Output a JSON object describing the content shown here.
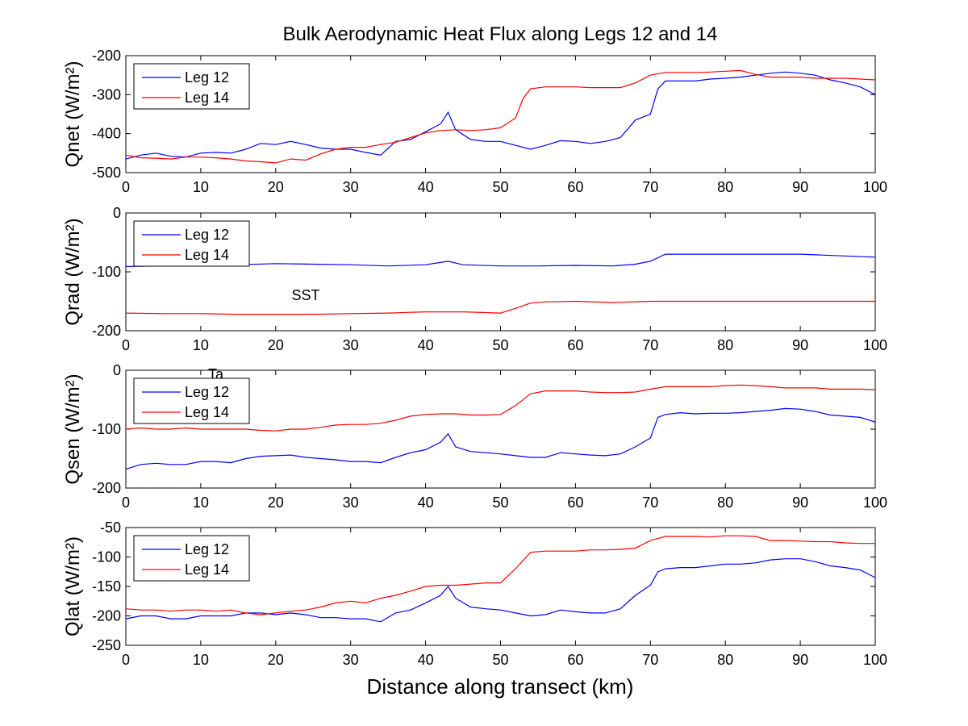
{
  "chart_data": {
    "title": "Bulk Aerodynamic Heat Flux along Legs 12 and 14",
    "xlabel": "Distance along transect (km)",
    "colors": {
      "Leg 12": "#0000ff",
      "Leg 14": "#ff0000"
    },
    "panels": [
      {
        "type": "line",
        "ylabel": "Qnet (W/m²)",
        "ylim": [
          -500,
          -200
        ],
        "yticks": [
          "-200",
          "-300",
          "-400",
          "-500"
        ],
        "xlim": [
          0,
          100
        ],
        "xticks": [
          "0",
          "10",
          "20",
          "30",
          "40",
          "50",
          "60",
          "70",
          "80",
          "90",
          "100"
        ],
        "legend": [
          "Leg 12",
          "Leg 14"
        ],
        "annotations": [],
        "series": [
          {
            "name": "Leg 12",
            "x": [
              0,
              2,
              4,
              6,
              8,
              10,
              12,
              14,
              16,
              18,
              20,
              22,
              24,
              26,
              28,
              30,
              32,
              34,
              36,
              38,
              40,
              42,
              43,
              44,
              46,
              48,
              50,
              52,
              54,
              56,
              58,
              60,
              62,
              64,
              66,
              68,
              70,
              71,
              72,
              74,
              76,
              78,
              80,
              82,
              84,
              86,
              88,
              90,
              92,
              94,
              96,
              98,
              100
            ],
            "y": [
              -465,
              -455,
              -450,
              -458,
              -460,
              -450,
              -448,
              -450,
              -440,
              -425,
              -428,
              -420,
              -428,
              -437,
              -440,
              -440,
              -448,
              -455,
              -420,
              -415,
              -395,
              -375,
              -345,
              -390,
              -415,
              -420,
              -420,
              -430,
              -440,
              -430,
              -418,
              -420,
              -425,
              -420,
              -410,
              -365,
              -350,
              -285,
              -265,
              -265,
              -265,
              -260,
              -258,
              -255,
              -250,
              -245,
              -242,
              -245,
              -250,
              -262,
              -270,
              -280,
              -300
            ]
          },
          {
            "name": "Leg 14",
            "x": [
              0,
              2,
              4,
              6,
              8,
              10,
              12,
              14,
              16,
              18,
              20,
              22,
              24,
              26,
              28,
              30,
              32,
              34,
              36,
              38,
              40,
              42,
              44,
              46,
              48,
              50,
              52,
              53,
              54,
              56,
              58,
              60,
              62,
              64,
              66,
              68,
              70,
              72,
              74,
              76,
              78,
              80,
              82,
              84,
              86,
              88,
              90,
              92,
              94,
              96,
              98,
              100
            ],
            "y": [
              -455,
              -462,
              -463,
              -465,
              -460,
              -460,
              -462,
              -465,
              -470,
              -472,
              -475,
              -465,
              -468,
              -452,
              -440,
              -435,
              -435,
              -428,
              -422,
              -410,
              -398,
              -392,
              -390,
              -392,
              -390,
              -385,
              -360,
              -310,
              -285,
              -280,
              -280,
              -280,
              -282,
              -282,
              -282,
              -270,
              -250,
              -243,
              -243,
              -243,
              -242,
              -240,
              -238,
              -248,
              -255,
              -255,
              -255,
              -258,
              -258,
              -258,
              -260,
              -262
            ]
          }
        ]
      },
      {
        "type": "line",
        "ylabel": "Qrad (W/m²)",
        "ylim": [
          -200,
          0
        ],
        "yticks": [
          "0",
          "-100",
          "-200"
        ],
        "xlim": [
          0,
          100
        ],
        "xticks": [
          "0",
          "10",
          "20",
          "30",
          "40",
          "50",
          "60",
          "70",
          "80",
          "90",
          "100"
        ],
        "legend": [
          "Leg 12",
          "Leg 14"
        ],
        "annotations": [
          {
            "text": "SST",
            "x": 24,
            "y": -148
          }
        ],
        "series": [
          {
            "name": "Leg 12",
            "x": [
              0,
              5,
              10,
              15,
              20,
              25,
              30,
              35,
              40,
              43,
              45,
              50,
              55,
              60,
              65,
              68,
              70,
              72,
              80,
              90,
              100
            ],
            "y": [
              -91,
              -90,
              -90,
              -88,
              -86,
              -87,
              -88,
              -90,
              -88,
              -82,
              -88,
              -90,
              -90,
              -89,
              -90,
              -87,
              -82,
              -70,
              -70,
              -70,
              -75
            ]
          },
          {
            "name": "Leg 14",
            "x": [
              0,
              5,
              10,
              15,
              20,
              25,
              30,
              35,
              40,
              45,
              50,
              52,
              54,
              56,
              60,
              65,
              70,
              75,
              80,
              90,
              100
            ],
            "y": [
              -170,
              -171,
              -171,
              -172,
              -172,
              -172,
              -171,
              -170,
              -168,
              -168,
              -170,
              -162,
              -153,
              -151,
              -150,
              -152,
              -150,
              -150,
              -150,
              -150,
              -150
            ]
          }
        ]
      },
      {
        "type": "line",
        "ylabel": "Qsen (W/m²)",
        "ylim": [
          -200,
          0
        ],
        "yticks": [
          "0",
          "-100",
          "-200"
        ],
        "xlim": [
          0,
          100
        ],
        "xticks": [
          "0",
          "10",
          "20",
          "30",
          "40",
          "50",
          "60",
          "70",
          "80",
          "90",
          "100"
        ],
        "legend": [
          "Leg 12",
          "Leg 14"
        ],
        "annotations": [
          {
            "text": "Ta",
            "x": 12,
            "y": -15
          }
        ],
        "series": [
          {
            "name": "Leg 12",
            "x": [
              0,
              2,
              4,
              6,
              8,
              10,
              12,
              14,
              16,
              18,
              20,
              22,
              24,
              26,
              28,
              30,
              32,
              34,
              36,
              38,
              40,
              42,
              43,
              44,
              46,
              48,
              50,
              52,
              54,
              56,
              58,
              60,
              62,
              64,
              66,
              68,
              70,
              71,
              72,
              74,
              76,
              78,
              80,
              82,
              84,
              86,
              88,
              90,
              92,
              94,
              96,
              98,
              100
            ],
            "y": [
              -168,
              -160,
              -158,
              -160,
              -160,
              -155,
              -155,
              -157,
              -150,
              -146,
              -145,
              -144,
              -148,
              -150,
              -152,
              -155,
              -155,
              -157,
              -148,
              -140,
              -135,
              -122,
              -108,
              -130,
              -138,
              -140,
              -142,
              -145,
              -148,
              -148,
              -140,
              -142,
              -144,
              -145,
              -142,
              -130,
              -115,
              -80,
              -75,
              -72,
              -74,
              -73,
              -73,
              -72,
              -70,
              -68,
              -65,
              -66,
              -70,
              -76,
              -78,
              -80,
              -88
            ]
          },
          {
            "name": "Leg 14",
            "x": [
              0,
              2,
              4,
              6,
              8,
              10,
              12,
              14,
              16,
              18,
              20,
              22,
              24,
              26,
              28,
              30,
              32,
              34,
              36,
              38,
              40,
              42,
              44,
              46,
              48,
              50,
              52,
              54,
              56,
              58,
              60,
              62,
              64,
              66,
              68,
              70,
              72,
              74,
              76,
              78,
              80,
              82,
              84,
              86,
              88,
              90,
              92,
              94,
              96,
              98,
              100
            ],
            "y": [
              -100,
              -98,
              -100,
              -100,
              -98,
              -100,
              -100,
              -100,
              -100,
              -102,
              -103,
              -100,
              -100,
              -97,
              -93,
              -92,
              -92,
              -90,
              -85,
              -78,
              -75,
              -74,
              -74,
              -76,
              -76,
              -75,
              -60,
              -40,
              -35,
              -35,
              -35,
              -37,
              -38,
              -38,
              -37,
              -32,
              -28,
              -28,
              -28,
              -28,
              -26,
              -25,
              -26,
              -28,
              -30,
              -30,
              -30,
              -32,
              -32,
              -32,
              -33
            ]
          }
        ]
      },
      {
        "type": "line",
        "ylabel": "Qlat (W/m²)",
        "ylim": [
          -250,
          -50
        ],
        "yticks": [
          "-50",
          "-100",
          "-150",
          "-200",
          "-250"
        ],
        "xlim": [
          0,
          100
        ],
        "xticks": [
          "0",
          "10",
          "20",
          "30",
          "40",
          "50",
          "60",
          "70",
          "80",
          "90",
          "100"
        ],
        "legend": [
          "Leg 12",
          "Leg 14"
        ],
        "annotations": [],
        "series": [
          {
            "name": "Leg 12",
            "x": [
              0,
              2,
              4,
              6,
              8,
              10,
              12,
              14,
              16,
              18,
              20,
              22,
              24,
              26,
              28,
              30,
              32,
              34,
              36,
              38,
              40,
              42,
              43,
              44,
              46,
              48,
              50,
              52,
              54,
              56,
              58,
              60,
              62,
              64,
              66,
              68,
              70,
              71,
              72,
              74,
              76,
              78,
              80,
              82,
              84,
              86,
              88,
              90,
              92,
              94,
              96,
              98,
              100
            ],
            "y": [
              -205,
              -200,
              -200,
              -205,
              -205,
              -200,
              -200,
              -200,
              -195,
              -195,
              -198,
              -195,
              -198,
              -203,
              -203,
              -205,
              -205,
              -210,
              -195,
              -190,
              -178,
              -165,
              -150,
              -170,
              -185,
              -188,
              -190,
              -195,
              -200,
              -198,
              -190,
              -193,
              -195,
              -195,
              -188,
              -165,
              -148,
              -125,
              -120,
              -118,
              -118,
              -115,
              -112,
              -112,
              -110,
              -105,
              -103,
              -103,
              -108,
              -115,
              -118,
              -122,
              -135
            ]
          },
          {
            "name": "Leg 14",
            "x": [
              0,
              2,
              4,
              6,
              8,
              10,
              12,
              14,
              16,
              18,
              20,
              22,
              24,
              26,
              28,
              30,
              32,
              34,
              36,
              38,
              40,
              42,
              44,
              46,
              48,
              50,
              52,
              54,
              56,
              58,
              60,
              62,
              64,
              66,
              68,
              70,
              72,
              74,
              76,
              78,
              80,
              82,
              84,
              86,
              88,
              90,
              92,
              94,
              96,
              98,
              100
            ],
            "y": [
              -188,
              -190,
              -190,
              -192,
              -190,
              -190,
              -192,
              -190,
              -195,
              -198,
              -195,
              -192,
              -190,
              -185,
              -178,
              -175,
              -178,
              -170,
              -165,
              -158,
              -150,
              -148,
              -148,
              -146,
              -144,
              -144,
              -120,
              -92,
              -90,
              -90,
              -90,
              -88,
              -88,
              -87,
              -85,
              -72,
              -65,
              -65,
              -65,
              -66,
              -64,
              -64,
              -65,
              -72,
              -72,
              -73,
              -74,
              -74,
              -76,
              -77,
              -77
            ]
          }
        ]
      }
    ]
  }
}
